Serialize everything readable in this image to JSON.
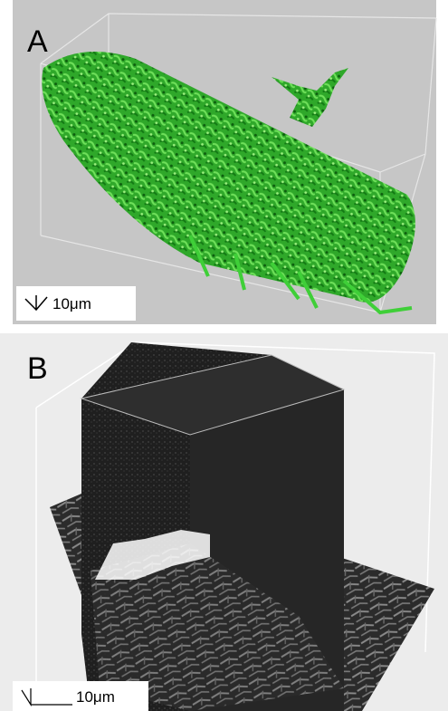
{
  "panels": [
    {
      "label": "A",
      "scale_bar": "10μm"
    },
    {
      "label": "B",
      "scale_bar": "10μm"
    }
  ]
}
